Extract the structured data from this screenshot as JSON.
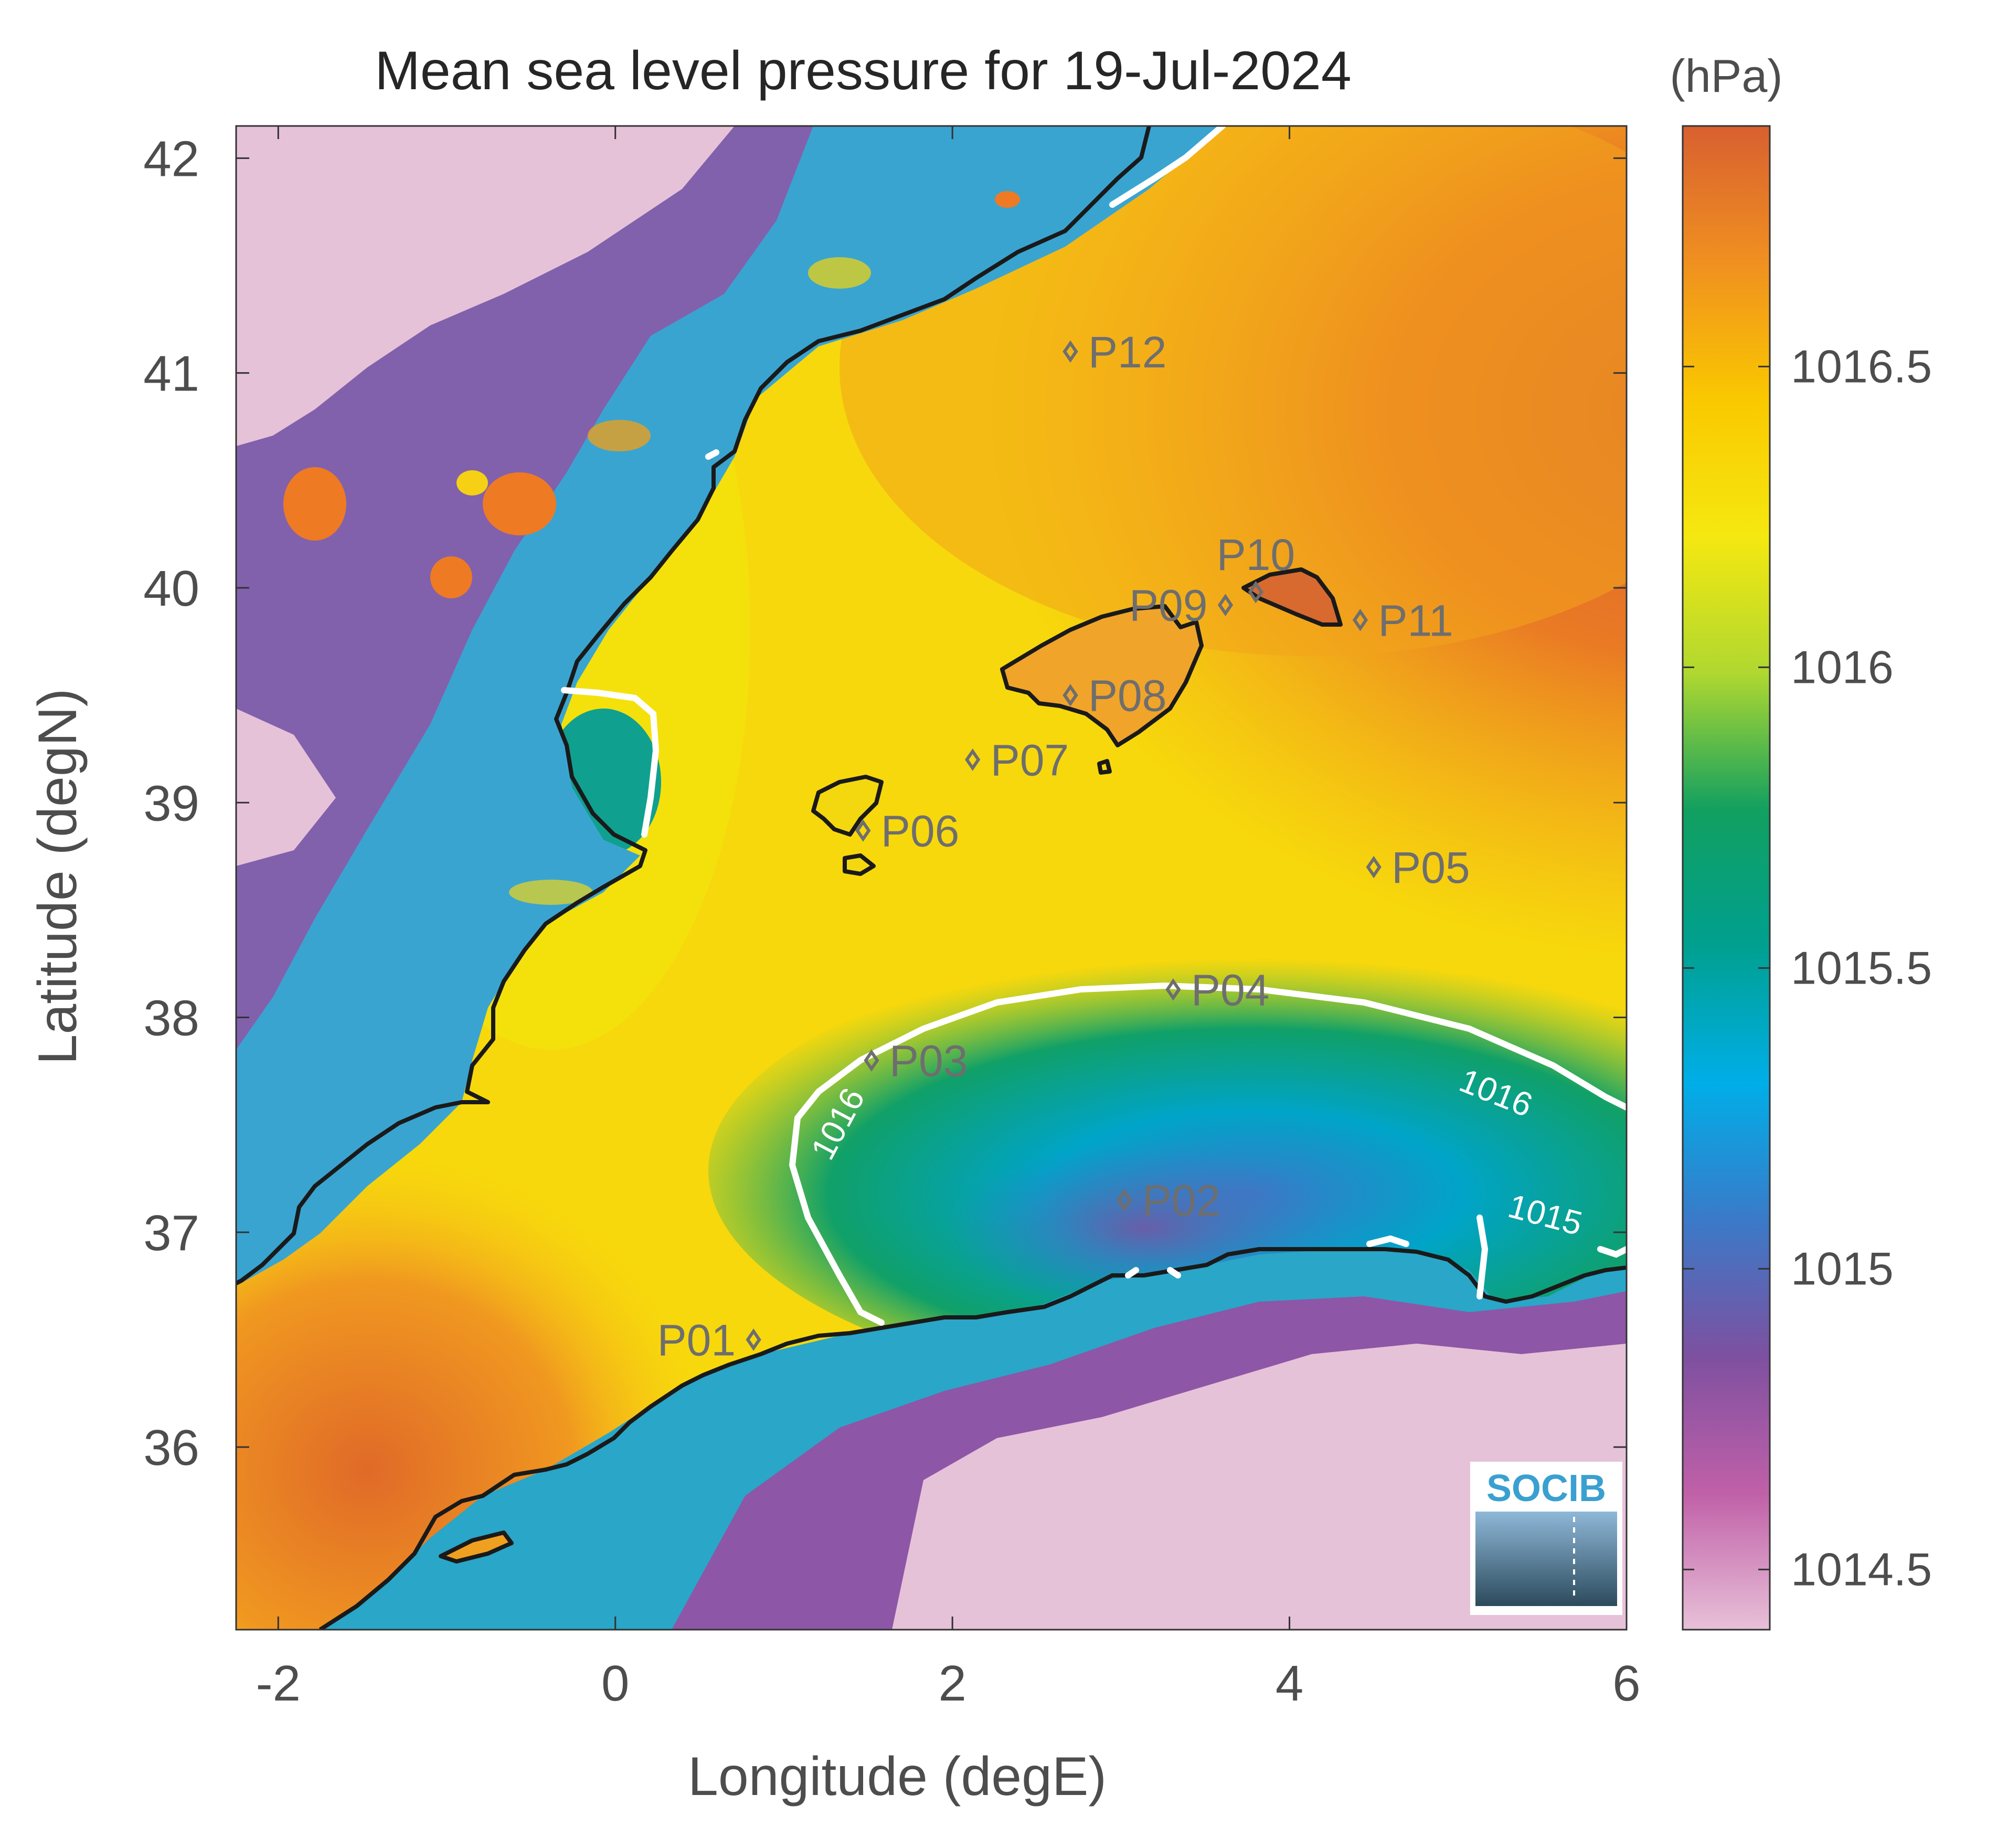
{
  "map": {
    "title": "Mean sea level pressure for 19-Jul-2024",
    "xlabel": "Longitude (degE)",
    "ylabel": "Latitude (degN)",
    "xlim": [
      -2.25,
      6
    ],
    "ylim": [
      35.15,
      42.15
    ],
    "xticks": [
      {
        "value": -2,
        "label": "-2"
      },
      {
        "value": 0,
        "label": "0"
      },
      {
        "value": 2,
        "label": "2"
      },
      {
        "value": 4,
        "label": "4"
      },
      {
        "value": 6,
        "label": "6"
      }
    ],
    "yticks": [
      {
        "value": 36,
        "label": "36"
      },
      {
        "value": 37,
        "label": "37"
      },
      {
        "value": 38,
        "label": "38"
      },
      {
        "value": 39,
        "label": "39"
      },
      {
        "value": 40,
        "label": "40"
      },
      {
        "value": 41,
        "label": "41"
      },
      {
        "value": 42,
        "label": "42"
      }
    ],
    "points": [
      {
        "name": "P01",
        "lon": 0.82,
        "lat": 36.5,
        "label_side": "left"
      },
      {
        "name": "P02",
        "lon": 3.02,
        "lat": 37.15,
        "label_side": "right"
      },
      {
        "name": "P03",
        "lon": 1.52,
        "lat": 37.8,
        "label_side": "right"
      },
      {
        "name": "P04",
        "lon": 3.31,
        "lat": 38.13,
        "label_side": "right"
      },
      {
        "name": "P05",
        "lon": 4.5,
        "lat": 38.7,
        "label_side": "right"
      },
      {
        "name": "P06",
        "lon": 1.47,
        "lat": 38.87,
        "label_side": "right"
      },
      {
        "name": "P07",
        "lon": 2.12,
        "lat": 39.2,
        "label_side": "right"
      },
      {
        "name": "P08",
        "lon": 2.7,
        "lat": 39.5,
        "label_side": "right"
      },
      {
        "name": "P09",
        "lon": 3.62,
        "lat": 39.92,
        "label_side": "left"
      },
      {
        "name": "P10",
        "lon": 3.8,
        "lat": 39.98,
        "label_side": "above"
      },
      {
        "name": "P11",
        "lon": 4.42,
        "lat": 39.85,
        "label_side": "right"
      },
      {
        "name": "P12",
        "lon": 2.7,
        "lat": 41.1,
        "label_side": "right"
      }
    ],
    "contour_labels": [
      {
        "text": "1016",
        "lon": 1.38,
        "lat": 37.48,
        "angle": -62
      },
      {
        "text": "1016",
        "lon": 5.2,
        "lat": 37.6,
        "angle": 22
      },
      {
        "text": "1015",
        "lon": 5.5,
        "lat": 37.03,
        "angle": 15
      }
    ]
  },
  "colorbar": {
    "units": "(hPa)",
    "range": [
      1014.4,
      1016.9
    ],
    "ticks": [
      {
        "value": 1014.5,
        "label": "1014.5"
      },
      {
        "value": 1015,
        "label": "1015"
      },
      {
        "value": 1015.5,
        "label": "1015.5"
      },
      {
        "value": 1016,
        "label": "1016"
      },
      {
        "value": 1016.5,
        "label": "1016.5"
      }
    ],
    "colors": [
      "#e8c0d8",
      "#c060a8",
      "#7e50a0",
      "#3a7ac8",
      "#00aee8",
      "#00a090",
      "#12a060",
      "#b0d830",
      "#f5e810",
      "#fac800",
      "#f09020",
      "#d86030"
    ]
  },
  "logo": {
    "text": "SOCIB",
    "colors": {
      "text": "#3aa0d0",
      "top": "#8eb8d8",
      "bottom": "#2c4a5c"
    }
  },
  "colors": {
    "coastline": "#1a1a1a",
    "contour": "#ffffff",
    "land": "#e6c2d9",
    "frame": "#333333"
  }
}
